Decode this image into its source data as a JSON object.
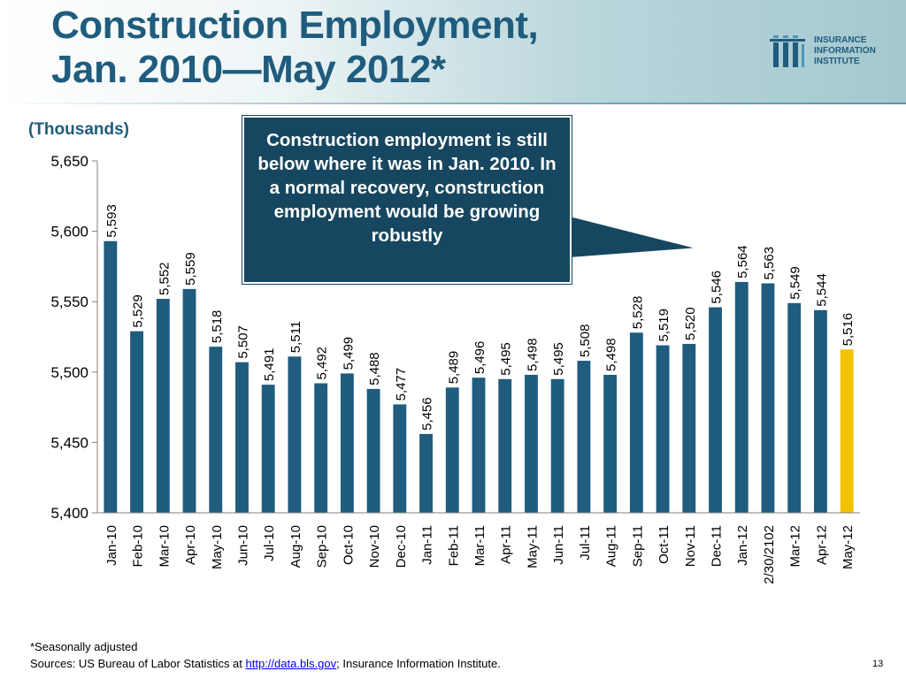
{
  "slide": {
    "title_line1": "Construction Employment,",
    "title_line2": "Jan. 2010—May 2012*",
    "units": "(Thousands)",
    "callout": "Construction  employment is still below where it was in Jan. 2010.  In a normal recovery, construction employment would be growing robustly",
    "footnote": "*Seasonally adjusted",
    "sources_prefix": "Sources: US Bureau of Labor Statistics at ",
    "sources_link": "http://data.bls.gov",
    "sources_suffix": "; Insurance Information Institute.",
    "page_number": "13"
  },
  "logo": {
    "line1": "INSURANCE",
    "line2": "INFORMATION",
    "line3": "INSTITUTE",
    "icon": "iii-logo-icon",
    "color": "#1f5c7d"
  },
  "chart_data": {
    "type": "bar",
    "categories": [
      "Jan-10",
      "Feb-10",
      "Mar-10",
      "Apr-10",
      "May-10",
      "Jun-10",
      "Jul-10",
      "Aug-10",
      "Sep-10",
      "Oct-10",
      "Nov-10",
      "Dec-10",
      "Jan-11",
      "Feb-11",
      "Mar-11",
      "Apr-11",
      "May-11",
      "Jun-11",
      "Jul-11",
      "Aug-11",
      "Sep-11",
      "Oct-11",
      "Nov-11",
      "Dec-11",
      "Jan-12",
      "2/30/2102",
      "Mar-12",
      "Apr-12",
      "May-12"
    ],
    "values": [
      5593,
      5529,
      5552,
      5559,
      5518,
      5507,
      5491,
      5511,
      5492,
      5499,
      5488,
      5477,
      5456,
      5489,
      5496,
      5495,
      5498,
      5495,
      5508,
      5498,
      5528,
      5519,
      5520,
      5546,
      5564,
      5563,
      5549,
      5544,
      5516
    ],
    "data_labels": [
      "5,593",
      "5,529",
      "5,552",
      "5,559",
      "5,518",
      "5,507",
      "5,491",
      "5,511",
      "5,492",
      "5,499",
      "5,488",
      "5,477",
      "5,456",
      "5,489",
      "5,496",
      "5,495",
      "5,498",
      "5,495",
      "5,508",
      "5,498",
      "5,528",
      "5,519",
      "5,520",
      "5,546",
      "5,564",
      "5,563",
      "5,549",
      "5,544",
      "5,516"
    ],
    "ylim": [
      5400,
      5650
    ],
    "yticks": [
      5400,
      5450,
      5500,
      5550,
      5600,
      5650
    ],
    "ytick_labels": [
      "5,400",
      "5,450",
      "5,500",
      "5,550",
      "5,600",
      "5,650"
    ],
    "highlight_index": 28,
    "colors": {
      "bar": "#1f5c7d",
      "highlight": "#f2c200"
    },
    "grid": false,
    "legend": "none"
  }
}
